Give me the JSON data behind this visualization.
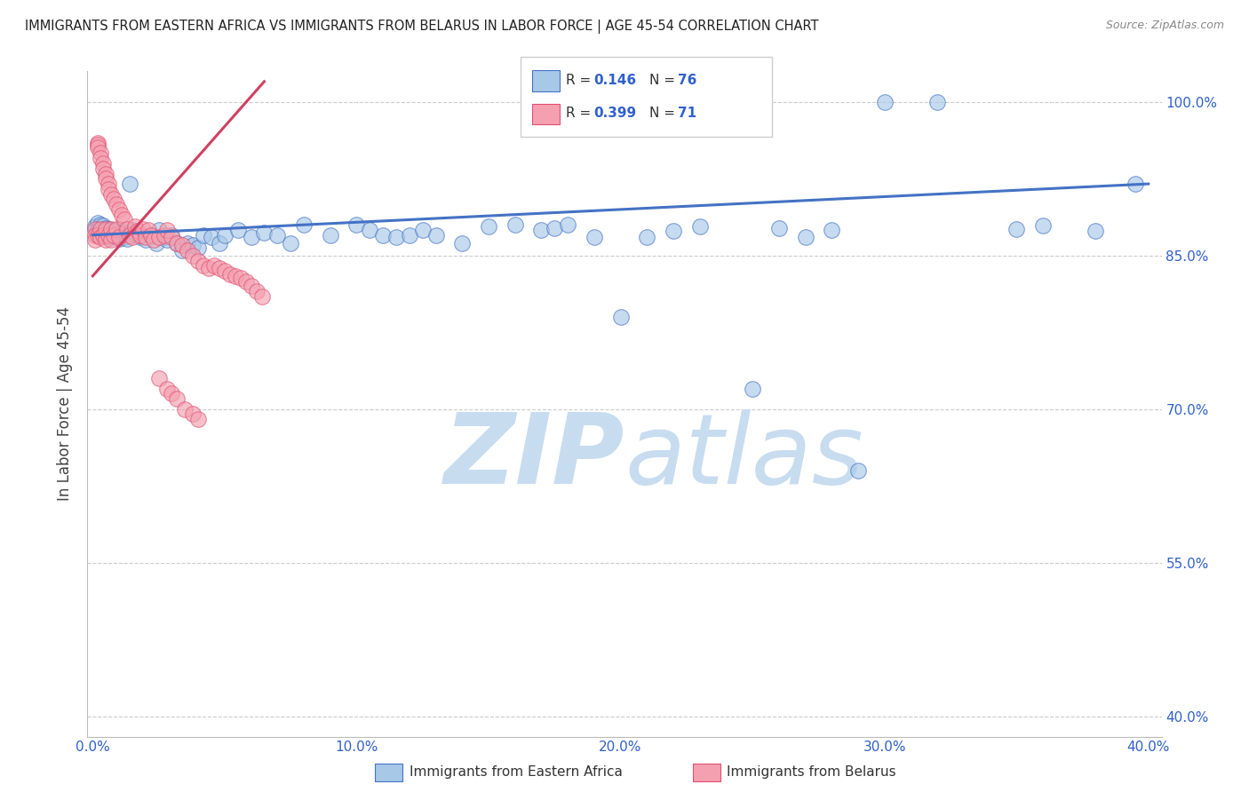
{
  "title": "IMMIGRANTS FROM EASTERN AFRICA VS IMMIGRANTS FROM BELARUS IN LABOR FORCE | AGE 45-54 CORRELATION CHART",
  "source": "Source: ZipAtlas.com",
  "ylabel": "In Labor Force | Age 45-54",
  "x_tick_labels": [
    "0.0%",
    "10.0%",
    "20.0%",
    "30.0%",
    "40.0%"
  ],
  "x_tick_positions": [
    0.0,
    0.1,
    0.2,
    0.3,
    0.4
  ],
  "y_tick_labels": [
    "100.0%",
    "85.0%",
    "70.0%",
    "55.0%",
    "40.0%"
  ],
  "y_tick_values": [
    1.0,
    0.85,
    0.7,
    0.55,
    0.4
  ],
  "xlim": [
    -0.002,
    0.405
  ],
  "ylim": [
    0.38,
    1.03
  ],
  "color_blue": "#a8c8e8",
  "color_pink": "#f4a0b0",
  "color_blue_edge": "#4472c4",
  "color_pink_edge": "#e05070",
  "color_blue_line": "#4472c4",
  "color_pink_line": "#d04060",
  "watermark_zip": "ZIP",
  "watermark_atlas": "atlas",
  "watermark_color": "#c8dcf0",
  "blue_x": [
    0.001,
    0.002,
    0.002,
    0.003,
    0.003,
    0.004,
    0.004,
    0.005,
    0.005,
    0.006,
    0.006,
    0.007,
    0.007,
    0.008,
    0.009,
    0.01,
    0.01,
    0.011,
    0.012,
    0.013,
    0.014,
    0.015,
    0.016,
    0.018,
    0.02,
    0.022,
    0.024,
    0.025,
    0.027,
    0.028,
    0.03,
    0.032,
    0.034,
    0.036,
    0.038,
    0.04,
    0.042,
    0.045,
    0.048,
    0.05,
    0.055,
    0.06,
    0.065,
    0.07,
    0.075,
    0.08,
    0.09,
    0.1,
    0.105,
    0.11,
    0.115,
    0.12,
    0.125,
    0.13,
    0.14,
    0.15,
    0.16,
    0.17,
    0.175,
    0.18,
    0.19,
    0.2,
    0.21,
    0.22,
    0.23,
    0.25,
    0.26,
    0.27,
    0.28,
    0.29,
    0.3,
    0.32,
    0.35,
    0.36,
    0.38,
    0.395
  ],
  "blue_y": [
    0.878,
    0.882,
    0.876,
    0.88,
    0.874,
    0.879,
    0.872,
    0.877,
    0.871,
    0.876,
    0.869,
    0.875,
    0.868,
    0.874,
    0.87,
    0.876,
    0.866,
    0.872,
    0.868,
    0.866,
    0.92,
    0.875,
    0.872,
    0.868,
    0.865,
    0.87,
    0.862,
    0.875,
    0.868,
    0.865,
    0.87,
    0.862,
    0.855,
    0.862,
    0.86,
    0.858,
    0.87,
    0.868,
    0.862,
    0.87,
    0.875,
    0.868,
    0.872,
    0.87,
    0.862,
    0.88,
    0.87,
    0.88,
    0.875,
    0.87,
    0.868,
    0.87,
    0.875,
    0.87,
    0.862,
    0.878,
    0.88,
    0.875,
    0.877,
    0.88,
    0.868,
    0.79,
    0.868,
    0.874,
    0.878,
    0.72,
    0.877,
    0.868,
    0.875,
    0.64,
    1.0,
    1.0,
    0.876,
    0.879,
    0.874,
    0.92
  ],
  "pink_x": [
    0.001,
    0.001,
    0.001,
    0.002,
    0.002,
    0.002,
    0.002,
    0.003,
    0.003,
    0.003,
    0.003,
    0.004,
    0.004,
    0.004,
    0.005,
    0.005,
    0.005,
    0.005,
    0.006,
    0.006,
    0.006,
    0.007,
    0.007,
    0.007,
    0.008,
    0.008,
    0.009,
    0.009,
    0.01,
    0.01,
    0.011,
    0.012,
    0.013,
    0.014,
    0.015,
    0.016,
    0.017,
    0.018,
    0.019,
    0.02,
    0.021,
    0.022,
    0.023,
    0.025,
    0.027,
    0.028,
    0.03,
    0.032,
    0.034,
    0.036,
    0.038,
    0.04,
    0.042,
    0.044,
    0.046,
    0.048,
    0.05,
    0.052,
    0.054,
    0.056,
    0.058,
    0.06,
    0.062,
    0.064,
    0.025,
    0.028,
    0.03,
    0.032,
    0.035,
    0.038,
    0.04
  ],
  "pink_y": [
    0.876,
    0.87,
    0.865,
    0.96,
    0.958,
    0.956,
    0.87,
    0.95,
    0.945,
    0.876,
    0.868,
    0.94,
    0.935,
    0.87,
    0.93,
    0.925,
    0.876,
    0.865,
    0.92,
    0.915,
    0.87,
    0.91,
    0.876,
    0.865,
    0.905,
    0.87,
    0.9,
    0.876,
    0.895,
    0.868,
    0.89,
    0.885,
    0.876,
    0.87,
    0.868,
    0.878,
    0.874,
    0.87,
    0.876,
    0.868,
    0.875,
    0.87,
    0.865,
    0.868,
    0.87,
    0.875,
    0.868,
    0.862,
    0.86,
    0.855,
    0.85,
    0.845,
    0.84,
    0.838,
    0.84,
    0.838,
    0.835,
    0.832,
    0.83,
    0.828,
    0.825,
    0.82,
    0.815,
    0.81,
    0.73,
    0.72,
    0.715,
    0.71,
    0.7,
    0.695,
    0.69
  ],
  "blue_line_x0": 0.0,
  "blue_line_x1": 0.4,
  "blue_line_y0": 0.87,
  "blue_line_y1": 0.92,
  "pink_line_x0": 0.0,
  "pink_line_x1": 0.065,
  "pink_line_y0": 0.83,
  "pink_line_y1": 1.02
}
